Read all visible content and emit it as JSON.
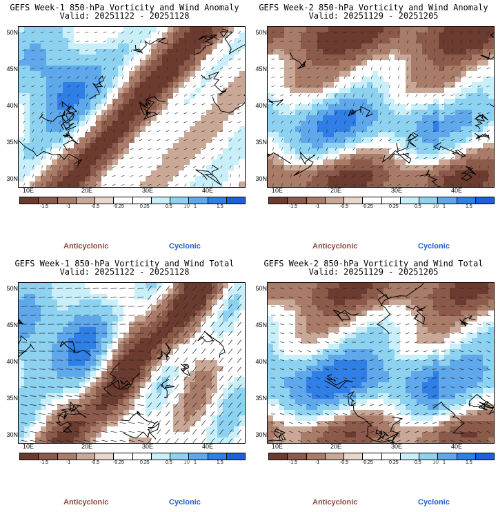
{
  "panels": [
    {
      "title": "GEFS Week-1 850-hPa Vorticity and Wind Anomaly",
      "valid": "Valid: 20251122 - 20251128",
      "style": "anom1"
    },
    {
      "title": "GEFS Week-2 850-hPa Vorticity and Wind Anomaly",
      "valid": "Valid: 20251129 - 20251205",
      "style": "anom2"
    },
    {
      "title": "GEFS Week-1 850-hPa Vorticity and Wind Total",
      "valid": "Valid: 20251122 - 20251128",
      "style": "tot1"
    },
    {
      "title": "GEFS Week-2 850-hPa Vorticity and Wind Total",
      "valid": "Valid: 20251129 - 20251205",
      "style": "tot2"
    }
  ],
  "axes": {
    "lat_labels": [
      "50N",
      "45N",
      "40N",
      "35N",
      "30N"
    ],
    "lon_labels": [
      "10E",
      "20E",
      "30E",
      "40E"
    ]
  },
  "colorbar": {
    "labels": [
      "-1.5",
      "-1",
      "-0.5",
      "-0.25",
      "0.25",
      "0.5",
      "1",
      "1.5"
    ],
    "unit": "10",
    "colors": [
      "#6b3b30",
      "#8b5a4a",
      "#a97c69",
      "#c9a897",
      "#e9d6cc",
      "#ffffff",
      "#ffffff",
      "#c9f0fa",
      "#8dd2f0",
      "#5fa8ec",
      "#2f7fe6",
      "#1c5fd6"
    ]
  },
  "labels": {
    "anticyclonic": "Anticyclonic",
    "cyclonic": "Cyclonic"
  },
  "colors": {
    "anticyclonic": "#8b4a3a",
    "cyclonic": "#1f5fd0"
  }
}
